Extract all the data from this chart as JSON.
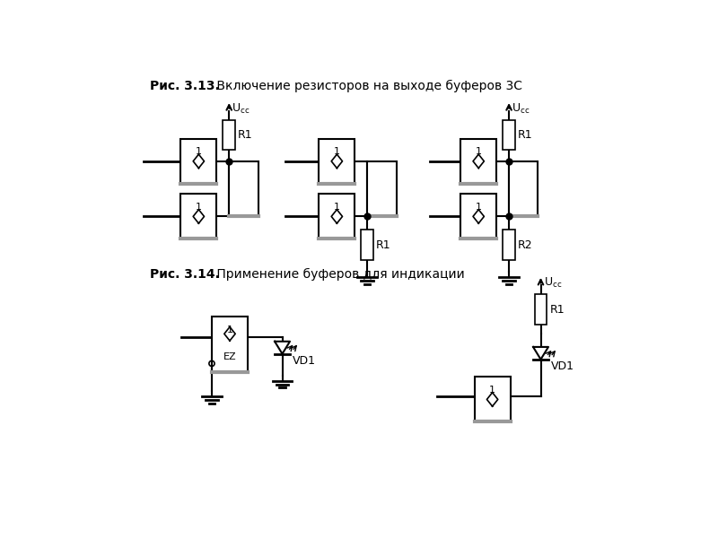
{
  "title1_bold": "Рис. 3.13.",
  "title1_normal": " Включение резисторов на выходе буферов 3С",
  "title2_bold": "Рис. 3.14.",
  "title2_normal": " Применение буферов для индикации",
  "bg_color": "#ffffff",
  "line_color": "#000000",
  "gray_color": "#999999"
}
